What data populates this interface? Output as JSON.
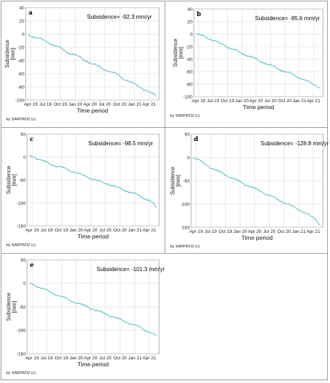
{
  "credit": "by SARPROZ (c)",
  "x_label": "Time period",
  "y_label_line1": "Subsidence",
  "y_label_line2": "[mm]",
  "x_tick_labels": [
    "Apr 19",
    "Jul 19",
    "Oct 19",
    "Jan 20",
    "Apr 20",
    "Jul 20",
    "Oct 20",
    "Jan 21",
    "Apr 21"
  ],
  "colors": {
    "series": "#3fb3bd",
    "grid": "#d8d8d8",
    "axis": "#9a9a9a"
  },
  "chart_data": [
    {
      "type": "line",
      "panel": "a",
      "subsidence_text": "Subsidence= -92.3 mm/yr",
      "ylim": [
        -100,
        40
      ],
      "yticks": [
        40,
        20,
        0,
        -20,
        -40,
        -60,
        -80,
        -100
      ],
      "x": [
        "2019-03-15",
        "2019-04-15",
        "2019-05-15",
        "2019-06-15",
        "2019-07-15",
        "2019-08-15",
        "2019-09-15",
        "2019-10-15",
        "2019-11-15",
        "2019-12-15",
        "2020-01-15",
        "2020-02-15",
        "2020-03-15",
        "2020-04-15",
        "2020-05-15",
        "2020-06-15",
        "2020-07-15",
        "2020-08-15",
        "2020-09-15",
        "2020-10-15",
        "2020-11-15",
        "2020-12-15",
        "2021-01-15",
        "2021-02-15",
        "2021-03-15",
        "2021-04-15",
        "2021-05-15"
      ],
      "values": [
        0,
        -4,
        -6,
        -9,
        -12,
        -16,
        -19,
        -23,
        -28,
        -30,
        -33,
        -38,
        -41,
        -45,
        -48,
        -52,
        -55,
        -58,
        -61,
        -66,
        -70,
        -74,
        -78,
        -82,
        -86,
        -90,
        -93
      ]
    },
    {
      "type": "line",
      "panel": "b",
      "subsidence_text": "Subsidence= -85.6 mm/yr",
      "ylim": [
        -100,
        40
      ],
      "yticks": [
        40,
        20,
        0,
        -20,
        -40,
        -60,
        -80,
        -100
      ],
      "x": [
        "2019-03-15",
        "2019-04-15",
        "2019-05-15",
        "2019-06-15",
        "2019-07-15",
        "2019-08-15",
        "2019-09-15",
        "2019-10-15",
        "2019-11-15",
        "2019-12-15",
        "2020-01-15",
        "2020-02-15",
        "2020-03-15",
        "2020-04-15",
        "2020-05-15",
        "2020-06-15",
        "2020-07-15",
        "2020-08-15",
        "2020-09-15",
        "2020-10-15",
        "2020-11-15",
        "2020-12-15",
        "2021-01-15",
        "2021-02-15",
        "2021-03-15",
        "2021-04-15",
        "2021-05-15"
      ],
      "values": [
        0,
        -2,
        -5,
        -8,
        -11,
        -15,
        -18,
        -22,
        -25,
        -29,
        -32,
        -35,
        -38,
        -42,
        -45,
        -48,
        -51,
        -55,
        -58,
        -61,
        -64,
        -68,
        -71,
        -75,
        -78,
        -82,
        -86
      ]
    },
    {
      "type": "line",
      "panel": "c",
      "subsidence_text": "Subsidence= -98.5 mm/yr",
      "ylim": [
        -150,
        50
      ],
      "yticks": [
        50,
        0,
        -50,
        -100,
        -150
      ],
      "x": [
        "2019-03-15",
        "2019-04-15",
        "2019-05-15",
        "2019-06-15",
        "2019-07-15",
        "2019-08-15",
        "2019-09-15",
        "2019-10-15",
        "2019-11-15",
        "2019-12-15",
        "2020-01-15",
        "2020-02-15",
        "2020-03-15",
        "2020-04-15",
        "2020-05-15",
        "2020-06-15",
        "2020-07-15",
        "2020-08-15",
        "2020-09-15",
        "2020-10-15",
        "2020-11-15",
        "2020-12-15",
        "2021-01-15",
        "2021-02-15",
        "2021-03-15",
        "2021-04-15",
        "2021-05-15"
      ],
      "values": [
        3,
        0,
        -5,
        -10,
        -14,
        -18,
        -21,
        -24,
        -28,
        -32,
        -36,
        -40,
        -44,
        -48,
        -52,
        -55,
        -58,
        -62,
        -66,
        -70,
        -74,
        -78,
        -82,
        -87,
        -92,
        -97,
        -110
      ]
    },
    {
      "type": "line",
      "panel": "d",
      "subsidence_text": "Subsidence= -128.8 mm/yr",
      "ylim": [
        -150,
        50
      ],
      "yticks": [
        50,
        0,
        -50,
        -100,
        -150
      ],
      "x": [
        "2019-03-15",
        "2019-04-15",
        "2019-05-15",
        "2019-06-15",
        "2019-07-15",
        "2019-08-15",
        "2019-09-15",
        "2019-10-15",
        "2019-11-15",
        "2019-12-15",
        "2020-01-15",
        "2020-02-15",
        "2020-03-15",
        "2020-04-15",
        "2020-05-15",
        "2020-06-15",
        "2020-07-15",
        "2020-08-15",
        "2020-09-15",
        "2020-10-15",
        "2020-11-15",
        "2020-12-15",
        "2021-01-15",
        "2021-02-15",
        "2021-03-15",
        "2021-04-15",
        "2021-05-15"
      ],
      "values": [
        0,
        -5,
        -12,
        -18,
        -25,
        -30,
        -34,
        -40,
        -45,
        -50,
        -55,
        -60,
        -65,
        -69,
        -74,
        -79,
        -84,
        -89,
        -94,
        -99,
        -104,
        -109,
        -114,
        -120,
        -126,
        -132,
        -145
      ]
    },
    {
      "type": "line",
      "panel": "e",
      "subsidence_text": "Subsidence= -101.3 mm/yr",
      "ylim": [
        -150,
        50
      ],
      "yticks": [
        50,
        0,
        -50,
        -100,
        -150
      ],
      "x": [
        "2019-03-15",
        "2019-04-15",
        "2019-05-15",
        "2019-06-15",
        "2019-07-15",
        "2019-08-15",
        "2019-09-15",
        "2019-10-15",
        "2019-11-15",
        "2019-12-15",
        "2020-01-15",
        "2020-02-15",
        "2020-03-15",
        "2020-04-15",
        "2020-05-15",
        "2020-06-15",
        "2020-07-15",
        "2020-08-15",
        "2020-09-15",
        "2020-10-15",
        "2020-11-15",
        "2020-12-15",
        "2021-01-15",
        "2021-02-15",
        "2021-03-15",
        "2021-04-15",
        "2021-05-15"
      ],
      "values": [
        0,
        -3,
        -8,
        -12,
        -17,
        -22,
        -26,
        -30,
        -35,
        -39,
        -43,
        -47,
        -51,
        -55,
        -59,
        -63,
        -67,
        -71,
        -75,
        -79,
        -83,
        -87,
        -91,
        -96,
        -101,
        -106,
        -112
      ]
    }
  ]
}
